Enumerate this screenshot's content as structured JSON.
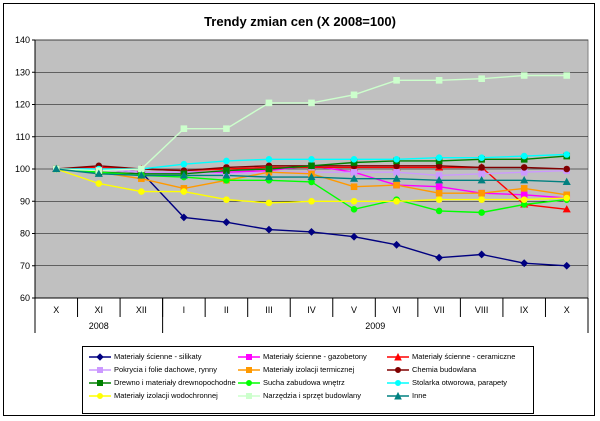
{
  "chart_data": {
    "type": "line",
    "title": "Trendy zmian cen (X 2008=100)",
    "xlabel": "",
    "ylabel": "",
    "ylim": [
      60,
      140
    ],
    "yticks": [
      60,
      70,
      80,
      90,
      100,
      110,
      120,
      130,
      140
    ],
    "grid": true,
    "legend_position": "bottom",
    "categories": [
      "X",
      "XI",
      "XII",
      "I",
      "II",
      "III",
      "IV",
      "V",
      "VI",
      "VII",
      "VIII",
      "IX",
      "X"
    ],
    "year_groups": [
      {
        "label": "2008",
        "span": 3
      },
      {
        "label": "2009",
        "span": 10
      }
    ],
    "series": [
      {
        "name": "Materiały ścienne - silikaty",
        "color": "#000080",
        "marker": "diamond",
        "values": [
          100,
          100,
          99,
          85,
          83.5,
          81.2,
          80.5,
          79,
          76.5,
          72.5,
          73.5,
          70.8,
          70
        ]
      },
      {
        "name": "Materiały ścienne - gazobetony",
        "color": "#ff00ff",
        "marker": "square",
        "values": [
          100,
          100,
          99,
          99,
          99,
          99.5,
          101,
          99,
          95,
          94.5,
          92.5,
          92,
          91
        ]
      },
      {
        "name": "Materiały ścienne - ceramiczne",
        "color": "#ff0000",
        "marker": "triangle",
        "values": [
          100,
          100.5,
          100,
          99.5,
          100,
          100.5,
          100.5,
          100.5,
          100.5,
          100.5,
          100.5,
          89,
          87.5
        ]
      },
      {
        "name": "Pokrycia i folie dachowe, rynny",
        "color": "#cc99ff",
        "marker": "square",
        "values": [
          100,
          100,
          99,
          99,
          98.5,
          99,
          99,
          99,
          99,
          98,
          98.5,
          99,
          99.5
        ]
      },
      {
        "name": "Materiały izolacji termicznej",
        "color": "#ff9900",
        "marker": "square",
        "values": [
          100,
          99,
          97,
          94,
          96.5,
          99,
          98.5,
          94.5,
          95,
          92.5,
          92.5,
          94,
          92
        ]
      },
      {
        "name": "Chemia budowlana",
        "color": "#800000",
        "marker": "circle",
        "values": [
          100,
          101,
          100,
          99.5,
          100.5,
          101,
          101,
          101,
          101,
          101,
          100.5,
          100.5,
          100
        ]
      },
      {
        "name": "Drewno i materiały drewnopochodne",
        "color": "#008000",
        "marker": "square",
        "values": [
          100,
          99,
          98.5,
          98.5,
          99.5,
          100,
          101,
          102,
          102.5,
          102.5,
          103,
          103,
          104
        ]
      },
      {
        "name": "Sucha zabudowa wnętrz",
        "color": "#00ff00",
        "marker": "circle",
        "values": [
          100,
          99,
          98,
          97.5,
          96.5,
          96.5,
          96,
          87.5,
          90.5,
          87,
          86.5,
          89,
          90.5
        ]
      },
      {
        "name": "Stolarka otworowa, parapety",
        "color": "#00ffff",
        "marker": "circle",
        "values": [
          100,
          100,
          100,
          101.5,
          102.5,
          103,
          103,
          103,
          103,
          103.5,
          103.5,
          104,
          104.5
        ]
      },
      {
        "name": "Materiały izolacji wodochronnej",
        "color": "#ffff00",
        "marker": "circle",
        "values": [
          100,
          95.5,
          93,
          93,
          90.5,
          89.5,
          90,
          90,
          90,
          90.5,
          90.5,
          90.5,
          91
        ]
      },
      {
        "name": "Narzędzia i sprzęt budowlany",
        "color": "#ccffcc",
        "marker": "square",
        "values": [
          100,
          99.5,
          100,
          112.5,
          112.5,
          120.5,
          120.5,
          123,
          127.5,
          127.5,
          128,
          129,
          129
        ]
      },
      {
        "name": "Inne",
        "color": "#008080",
        "marker": "triangle",
        "values": [
          100,
          98.5,
          98,
          98,
          98,
          97.5,
          97.5,
          97,
          97,
          96.5,
          96.5,
          96.5,
          96
        ]
      }
    ]
  }
}
